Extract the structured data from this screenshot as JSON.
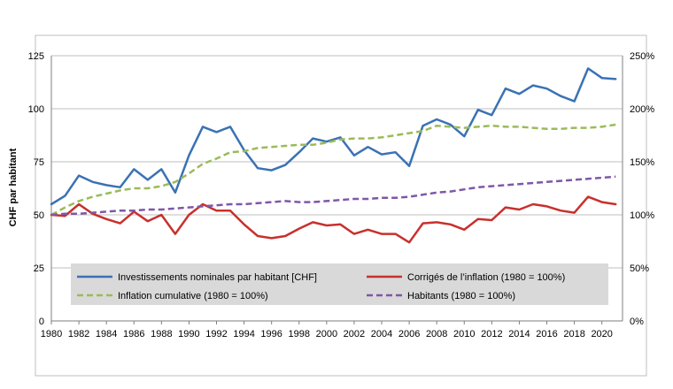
{
  "chart_data": {
    "type": "line",
    "title": "",
    "xlabel": "",
    "ylabel": "CHF par habitant",
    "ylim": [
      0,
      125
    ],
    "y2lim": [
      0,
      250
    ],
    "y_ticks": [
      "0",
      "25",
      "50",
      "75",
      "100",
      "125"
    ],
    "y2_ticks": [
      "0%",
      "50%",
      "100%",
      "150%",
      "200%",
      "250%"
    ],
    "x_ticks": [
      "1980",
      "1982",
      "1984",
      "1986",
      "1988",
      "1990",
      "1992",
      "1994",
      "1996",
      "1998",
      "2000",
      "2002",
      "2004",
      "2006",
      "2008",
      "2010",
      "2012",
      "2014",
      "2016",
      "2018",
      "2020"
    ],
    "grid": true,
    "legend_position": "bottom",
    "x": [
      1980,
      1981,
      1982,
      1983,
      1984,
      1985,
      1986,
      1987,
      1988,
      1989,
      1990,
      1991,
      1992,
      1993,
      1994,
      1995,
      1996,
      1997,
      1998,
      1999,
      2000,
      2001,
      2002,
      2003,
      2004,
      2005,
      2006,
      2007,
      2008,
      2009,
      2010,
      2011,
      2012,
      2013,
      2014,
      2015,
      2016,
      2017,
      2018,
      2019,
      2020,
      2021
    ],
    "series": [
      {
        "name": "Investissements nominales par habitant [CHF]",
        "axis": "left",
        "style": "solid",
        "color": "#3a72b4",
        "values": [
          55,
          59,
          68.5,
          65.5,
          64,
          63,
          71.5,
          66.5,
          71.5,
          60.5,
          78,
          91.5,
          89,
          91.5,
          80.5,
          72,
          71,
          73.5,
          79.5,
          86,
          84.5,
          86.5,
          78,
          82,
          78.5,
          79.5,
          73,
          92,
          95,
          92.5,
          87,
          99.5,
          97,
          109.5,
          107,
          111,
          109.5,
          106,
          103.5,
          119,
          114.5,
          114
        ]
      },
      {
        "name": "Corrigés de l’inflation (1980 = 100%)",
        "axis": "right",
        "style": "solid",
        "color": "#c8302c",
        "values": [
          100,
          99,
          110,
          101,
          96,
          92,
          103,
          94,
          100,
          82,
          100,
          110,
          104,
          104,
          91,
          80,
          78,
          80,
          87,
          93,
          90,
          91,
          82,
          86,
          82,
          82,
          74,
          92,
          93,
          91,
          86,
          96,
          95,
          107,
          105,
          110,
          108,
          104,
          102,
          117,
          112,
          110
        ]
      },
      {
        "name": "Inflation cumulative (1980 = 100%)",
        "axis": "right",
        "style": "dashed",
        "color": "#9bbb59",
        "values": [
          100,
          107,
          113,
          117,
          120,
          123,
          125,
          125,
          127,
          131,
          139,
          148,
          153,
          159,
          160,
          163,
          164,
          165,
          166,
          166,
          168,
          171,
          172,
          172,
          173,
          175,
          177,
          179,
          184,
          183,
          182,
          183,
          184,
          183,
          183,
          182,
          181,
          181,
          182,
          182,
          183,
          185
        ]
      },
      {
        "name": "Habitants (1980 = 100%)",
        "axis": "right",
        "style": "dashed",
        "color": "#7f57a8",
        "values": [
          100,
          101,
          101,
          102,
          103,
          104,
          104,
          105,
          105,
          106,
          107,
          108,
          109,
          110,
          110,
          111,
          112,
          113,
          112,
          112,
          113,
          114,
          115,
          115,
          116,
          116,
          117,
          119,
          121,
          122,
          124,
          126,
          127,
          128,
          129,
          130,
          131,
          132,
          133,
          134,
          135,
          136
        ]
      }
    ]
  }
}
